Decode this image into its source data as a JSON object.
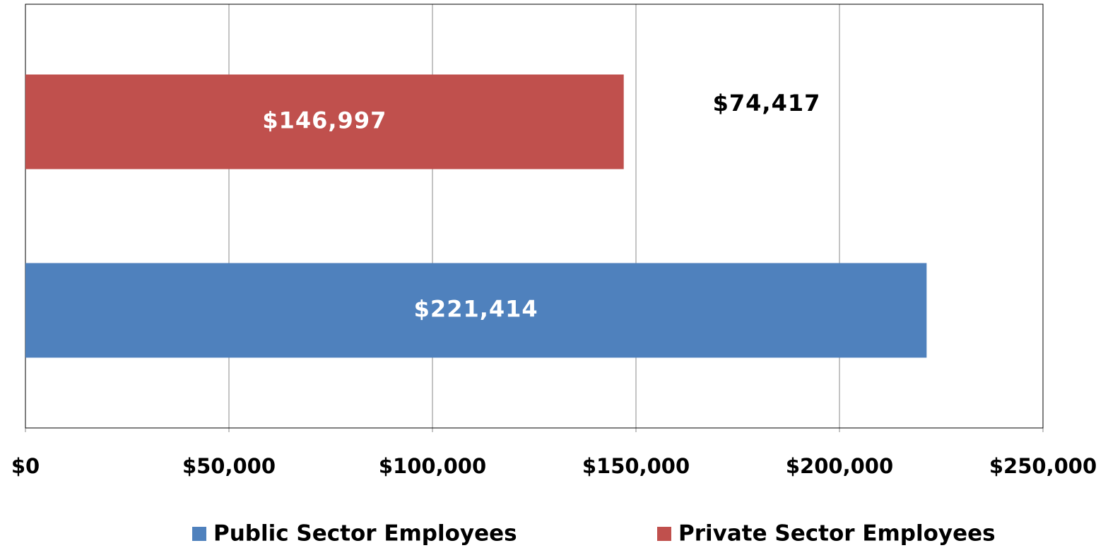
{
  "chart_data": {
    "type": "bar",
    "orientation": "horizontal",
    "categories": [
      null
    ],
    "series": [
      {
        "name": "Public Sector Employees",
        "color": "#4f81bd",
        "values": [
          221414
        ],
        "value_labels": [
          "$221,414"
        ]
      },
      {
        "name": "Private Sector Employees",
        "color": "#c0504d",
        "values": [
          146997
        ],
        "value_labels": [
          "$146,997"
        ]
      }
    ],
    "annotations": [
      "$74,417"
    ],
    "xlim": [
      0,
      250000
    ],
    "xticks": [
      {
        "value": 0,
        "label": "$0"
      },
      {
        "value": 50000,
        "label": "$50,000"
      },
      {
        "value": 100000,
        "label": "$100,000"
      },
      {
        "value": 150000,
        "label": "$150,000"
      },
      {
        "value": 200000,
        "label": "$200,000"
      },
      {
        "value": 250000,
        "label": "$250,000"
      }
    ],
    "grid": true,
    "legend": "bottom"
  }
}
